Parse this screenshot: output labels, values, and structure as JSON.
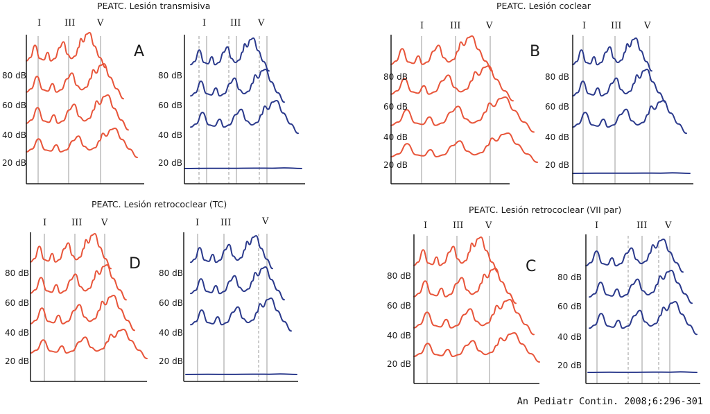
{
  "citation": "An Pediatr Contin. 2008;6:296-301",
  "colors": {
    "normal": "#e8553a",
    "affected": "#2b3a8c",
    "axis": "#1a1a1a",
    "marker": "#9a9a9a"
  },
  "wave_labels": [
    "I",
    "III",
    "V"
  ],
  "db_levels": [
    "80 dB",
    "60 dB",
    "40 dB",
    "20 dB"
  ],
  "panels": [
    {
      "letter": "A",
      "title": "PEATC. Lesión transmisiva"
    },
    {
      "letter": "B",
      "title": "PEATC. Lesión coclear"
    },
    {
      "letter": "D",
      "title": "PEATC. Lesión retrococlear (TC)"
    },
    {
      "letter": "C",
      "title": "PEATC. Lesión retrococlear (VII par)"
    }
  ]
}
